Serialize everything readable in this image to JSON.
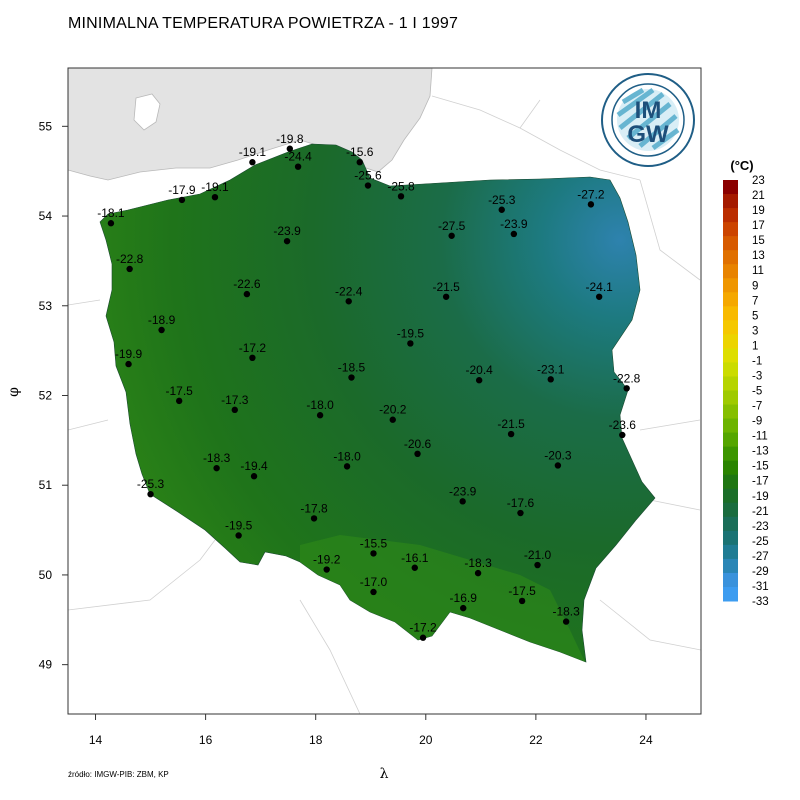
{
  "title": "MINIMALNA TEMPERATURA POWIETRZA - 1 I 1997",
  "source": "źródło: IMGW-PIB: ZBM, KP",
  "axes": {
    "x_label": "λ",
    "y_label": "φ",
    "x_ticks": [
      "14",
      "16",
      "18",
      "20",
      "22",
      "24"
    ],
    "y_ticks": [
      "55",
      "54",
      "53",
      "52",
      "51",
      "50",
      "49"
    ]
  },
  "logo": {
    "line1": "IM",
    "line2": "GW",
    "ring_text": "INSTYTUT METEOROLOGII I GOSPODARKI WODNEJ · PAŃSTWOWY INSTYTUT BADAWCZY"
  },
  "legend": {
    "unit": "(°C)",
    "labels": [
      "23",
      "21",
      "19",
      "17",
      "15",
      "13",
      "11",
      "9",
      "7",
      "5",
      "3",
      "1",
      "-1",
      "-3",
      "-5",
      "-7",
      "-9",
      "-11",
      "-13",
      "-15",
      "-17",
      "-19",
      "-21",
      "-23",
      "-25",
      "-27",
      "-29",
      "-31",
      "-33"
    ],
    "colors": [
      "#8b0000",
      "#a51a00",
      "#bb2d00",
      "#cc4400",
      "#d75a00",
      "#e07000",
      "#e88300",
      "#ef9600",
      "#f5a800",
      "#f8ba00",
      "#f5c800",
      "#ecd400",
      "#dede00",
      "#cbdc00",
      "#b6d400",
      "#9fca00",
      "#86bf00",
      "#6db400",
      "#55a600",
      "#3d9600",
      "#2a8400",
      "#1f7612",
      "#1b6e28",
      "#1a6c3e",
      "#1a6e58",
      "#1a7374",
      "#1f7c94",
      "#2a86b6",
      "#3a92dc",
      "#3d9cf0"
    ]
  },
  "chart_data": {
    "type": "map",
    "title": "MINIMALNA TEMPERATURA POWIETRZA - 1 I 1997",
    "xlabel": "λ",
    "ylabel": "φ",
    "xlim": [
      13.5,
      25
    ],
    "ylim": [
      48.45,
      55.65
    ],
    "unit": "°C",
    "stations": [
      {
        "lon": 14.28,
        "lat": 53.92,
        "value": "-18.1"
      },
      {
        "lon": 14.62,
        "lat": 53.41,
        "value": "-22.8"
      },
      {
        "lon": 15.57,
        "lat": 54.18,
        "value": "-17.9"
      },
      {
        "lon": 16.17,
        "lat": 54.21,
        "value": "-19.1"
      },
      {
        "lon": 16.85,
        "lat": 54.6,
        "value": "-19.1"
      },
      {
        "lon": 17.53,
        "lat": 54.75,
        "value": "-19.8"
      },
      {
        "lon": 17.68,
        "lat": 54.55,
        "value": "-24.4"
      },
      {
        "lon": 18.8,
        "lat": 54.6,
        "value": "-15.6"
      },
      {
        "lon": 18.95,
        "lat": 54.34,
        "value": "-25.6"
      },
      {
        "lon": 19.55,
        "lat": 54.22,
        "value": "-25.8"
      },
      {
        "lon": 21.38,
        "lat": 54.07,
        "value": "-25.3"
      },
      {
        "lon": 23.0,
        "lat": 54.13,
        "value": "-27.2"
      },
      {
        "lon": 17.48,
        "lat": 53.72,
        "value": "-23.9"
      },
      {
        "lon": 20.47,
        "lat": 53.78,
        "value": "-27.5"
      },
      {
        "lon": 21.6,
        "lat": 53.8,
        "value": "-23.9"
      },
      {
        "lon": 16.75,
        "lat": 53.13,
        "value": "-22.6"
      },
      {
        "lon": 18.6,
        "lat": 53.05,
        "value": "-22.4"
      },
      {
        "lon": 20.37,
        "lat": 53.1,
        "value": "-21.5"
      },
      {
        "lon": 23.15,
        "lat": 53.1,
        "value": "-24.1"
      },
      {
        "lon": 15.2,
        "lat": 52.73,
        "value": "-18.9"
      },
      {
        "lon": 19.72,
        "lat": 52.58,
        "value": "-19.5"
      },
      {
        "lon": 14.6,
        "lat": 52.35,
        "value": "-19.9"
      },
      {
        "lon": 16.85,
        "lat": 52.42,
        "value": "-17.2"
      },
      {
        "lon": 18.65,
        "lat": 52.2,
        "value": "-18.5"
      },
      {
        "lon": 20.97,
        "lat": 52.17,
        "value": "-20.4"
      },
      {
        "lon": 22.27,
        "lat": 52.18,
        "value": "-23.1"
      },
      {
        "lon": 23.65,
        "lat": 52.08,
        "value": "-22.8"
      },
      {
        "lon": 15.52,
        "lat": 51.94,
        "value": "-17.5"
      },
      {
        "lon": 16.53,
        "lat": 51.84,
        "value": "-17.3"
      },
      {
        "lon": 18.08,
        "lat": 51.78,
        "value": "-18.0"
      },
      {
        "lon": 19.4,
        "lat": 51.73,
        "value": "-20.2"
      },
      {
        "lon": 21.55,
        "lat": 51.57,
        "value": "-21.5"
      },
      {
        "lon": 23.57,
        "lat": 51.56,
        "value": "-23.6"
      },
      {
        "lon": 16.2,
        "lat": 51.19,
        "value": "-18.3"
      },
      {
        "lon": 16.88,
        "lat": 51.1,
        "value": "-19.4"
      },
      {
        "lon": 18.57,
        "lat": 51.21,
        "value": "-18.0"
      },
      {
        "lon": 19.85,
        "lat": 51.35,
        "value": "-20.6"
      },
      {
        "lon": 22.4,
        "lat": 51.22,
        "value": "-20.3"
      },
      {
        "lon": 15.0,
        "lat": 50.9,
        "value": "-25.3"
      },
      {
        "lon": 20.67,
        "lat": 50.82,
        "value": "-23.9"
      },
      {
        "lon": 21.72,
        "lat": 50.69,
        "value": "-17.6"
      },
      {
        "lon": 17.97,
        "lat": 50.63,
        "value": "-17.8"
      },
      {
        "lon": 16.6,
        "lat": 50.44,
        "value": "-19.5"
      },
      {
        "lon": 19.05,
        "lat": 50.24,
        "value": "-15.5"
      },
      {
        "lon": 19.8,
        "lat": 50.08,
        "value": "-16.1"
      },
      {
        "lon": 18.2,
        "lat": 50.06,
        "value": "-19.2"
      },
      {
        "lon": 20.95,
        "lat": 50.02,
        "value": "-18.3"
      },
      {
        "lon": 22.03,
        "lat": 50.11,
        "value": "-21.0"
      },
      {
        "lon": 19.05,
        "lat": 49.81,
        "value": "-17.0"
      },
      {
        "lon": 20.68,
        "lat": 49.63,
        "value": "-16.9"
      },
      {
        "lon": 21.75,
        "lat": 49.71,
        "value": "-17.5"
      },
      {
        "lon": 22.55,
        "lat": 49.48,
        "value": "-18.3"
      },
      {
        "lon": 19.95,
        "lat": 49.3,
        "value": "-17.2"
      }
    ]
  }
}
